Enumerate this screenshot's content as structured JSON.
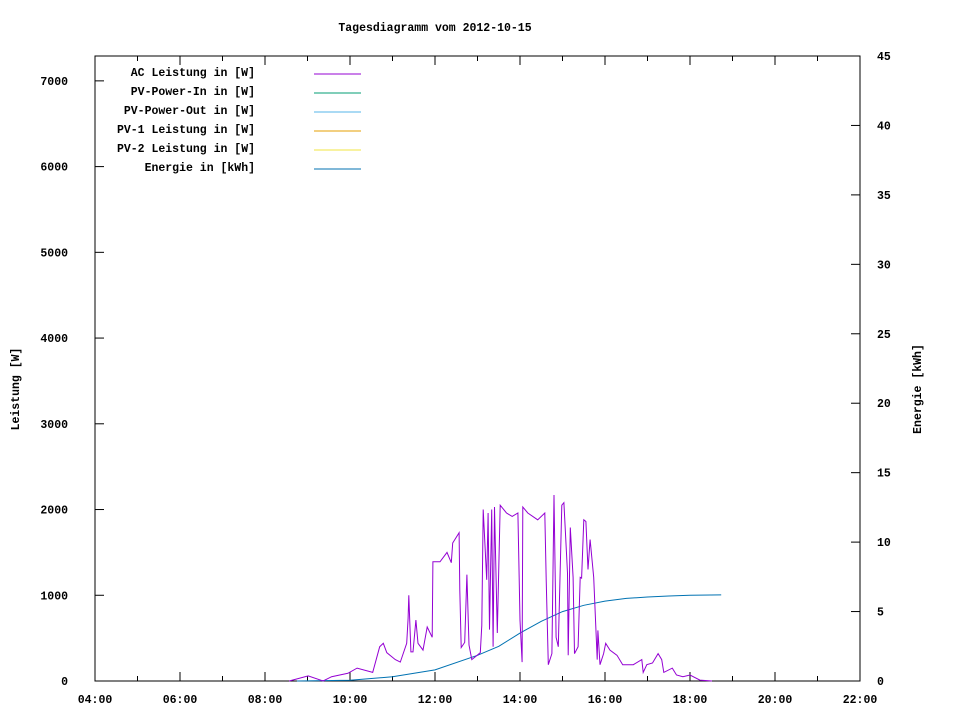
{
  "chart_data": {
    "type": "line",
    "title": "Tagesdiagramm vom 2012-10-15",
    "xlabel": "",
    "ylabel": "Leistung [W]",
    "y2label": "Energie [kWh]",
    "xlim": [
      "04:00",
      "22:00"
    ],
    "ylim": [
      0,
      7290
    ],
    "y2lim": [
      0,
      45
    ],
    "x_ticks": [
      "04:00",
      "06:00",
      "08:00",
      "10:00",
      "12:00",
      "14:00",
      "16:00",
      "18:00",
      "20:00",
      "22:00"
    ],
    "y_ticks": [
      0,
      1000,
      2000,
      3000,
      4000,
      5000,
      6000,
      7000
    ],
    "y2_ticks": [
      0,
      5,
      10,
      15,
      20,
      25,
      30,
      35,
      40,
      45
    ],
    "grid": false,
    "legend_position": "top-left",
    "series": [
      {
        "name": "AC Leistung in [W]",
        "color": "#9400d3",
        "axis": "y",
        "x": [
          "08:34",
          "09:01",
          "09:22",
          "09:34",
          "09:57",
          "10:10",
          "10:32",
          "10:42",
          "10:47",
          "10:52",
          "11:04",
          "11:11",
          "11:20",
          "11:22",
          "11:23",
          "11:26",
          "11:29",
          "11:33",
          "11:36",
          "11:43",
          "11:49",
          "11:56",
          "11:57",
          "12:07",
          "12:17",
          "12:23",
          "12:25",
          "12:34",
          "12:35",
          "12:37",
          "12:42",
          "12:45",
          "12:48",
          "12:52",
          "13:04",
          "13:06",
          "13:08",
          "13:13",
          "13:15",
          "13:17",
          "13:20",
          "13:22",
          "13:24",
          "13:28",
          "13:32",
          "13:41",
          "13:49",
          "13:57",
          "14:00",
          "14:03",
          "14:04",
          "14:11",
          "14:25",
          "14:35",
          "14:37",
          "14:40",
          "14:45",
          "14:48",
          "14:51",
          "14:54",
          "14:59",
          "15:02",
          "15:07",
          "15:08",
          "15:11",
          "15:15",
          "15:17",
          "15:22",
          "15:25",
          "15:27",
          "15:30",
          "15:33",
          "15:36",
          "15:39",
          "15:44",
          "15:49",
          "15:50",
          "15:53",
          "15:58",
          "16:01",
          "16:07",
          "16:17",
          "16:25",
          "16:40",
          "16:52",
          "16:54",
          "16:59",
          "17:07",
          "17:15",
          "17:20",
          "17:23",
          "17:35",
          "17:41",
          "17:50",
          "18:00",
          "18:14",
          "18:31"
        ],
        "values": [
          0,
          60,
          0,
          50,
          90,
          150,
          100,
          400,
          440,
          330,
          250,
          220,
          440,
          730,
          1000,
          340,
          340,
          710,
          440,
          360,
          630,
          510,
          1390,
          1390,
          1500,
          1380,
          1610,
          1730,
          1060,
          390,
          450,
          1240,
          420,
          250,
          330,
          650,
          2000,
          1180,
          1960,
          600,
          2000,
          400,
          2030,
          560,
          2050,
          1960,
          1920,
          1960,
          710,
          220,
          2030,
          1960,
          1880,
          1960,
          1180,
          190,
          320,
          2170,
          510,
          400,
          2050,
          2080,
          1260,
          300,
          1790,
          1210,
          320,
          400,
          1210,
          1200,
          1880,
          1860,
          1300,
          1650,
          1210,
          250,
          590,
          190,
          320,
          440,
          360,
          300,
          190,
          190,
          250,
          100,
          190,
          210,
          320,
          250,
          100,
          150,
          70,
          50,
          70,
          10,
          0
        ]
      },
      {
        "name": "PV-Power-In in [W]",
        "color": "#009e73",
        "axis": "y"
      },
      {
        "name": "PV-Power-Out in [W]",
        "color": "#56b4e9",
        "axis": "y"
      },
      {
        "name": "PV-1 Leistung in [W]",
        "color": "#e69f00",
        "axis": "y"
      },
      {
        "name": "PV-2 Leistung in [W]",
        "color": "#f0e442",
        "axis": "y"
      },
      {
        "name": "Energie in [kWh]",
        "color": "#0072b2",
        "axis": "y2",
        "x": [
          "08:45",
          "10:00",
          "11:00",
          "12:00",
          "13:00",
          "13:30",
          "14:00",
          "14:30",
          "15:00",
          "15:30",
          "16:00",
          "16:30",
          "17:00",
          "17:30",
          "18:00",
          "18:44"
        ],
        "values": [
          0,
          0.05,
          0.3,
          0.8,
          1.85,
          2.5,
          3.45,
          4.3,
          5.0,
          5.45,
          5.75,
          5.95,
          6.05,
          6.12,
          6.18,
          6.2
        ]
      }
    ]
  }
}
